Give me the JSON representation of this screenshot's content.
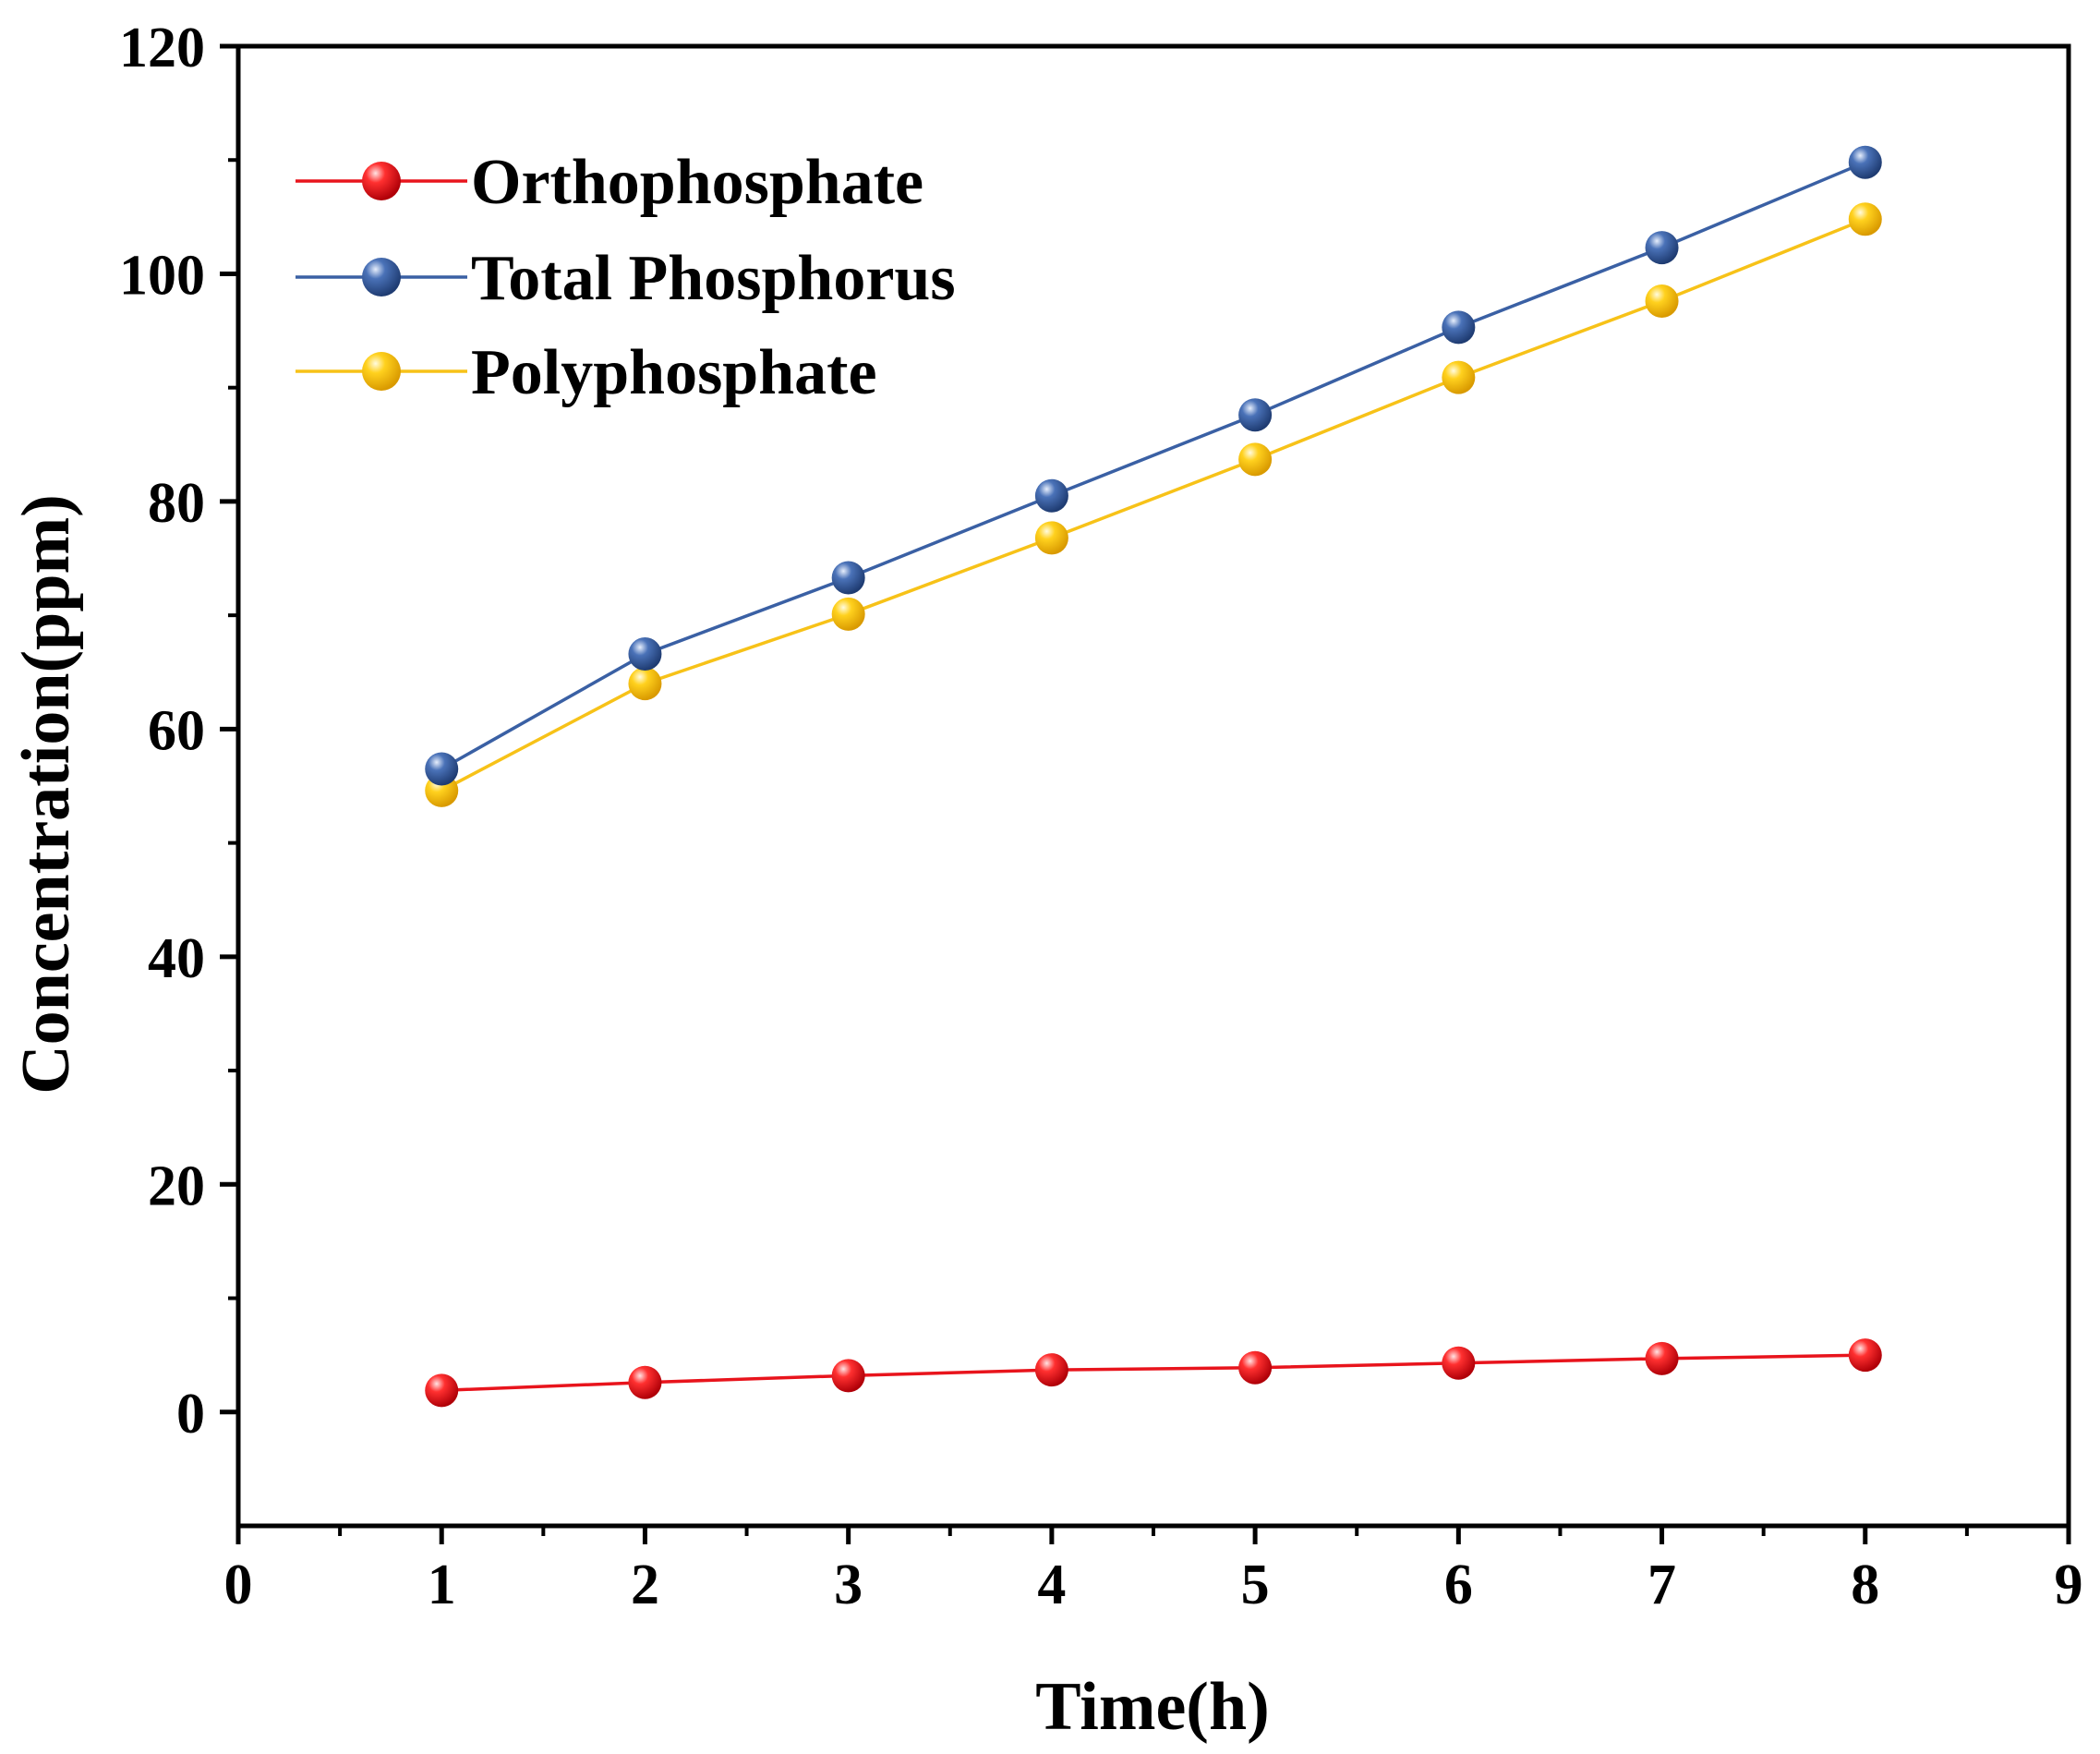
{
  "chart_data": {
    "type": "line",
    "title": "",
    "xlabel": "Time(h)",
    "ylabel": "Concentration(ppm)",
    "xlim": [
      0,
      9
    ],
    "ylim": [
      -10,
      120
    ],
    "x_ticks": [
      0,
      1,
      2,
      3,
      4,
      5,
      6,
      7,
      8,
      9
    ],
    "y_ticks": [
      0,
      20,
      40,
      60,
      80,
      100,
      120
    ],
    "grid": false,
    "legend_position": "top-left",
    "x": [
      1,
      2,
      3,
      4,
      5,
      6,
      7,
      8
    ],
    "series": [
      {
        "name": "Orthophosphate",
        "color": "#e8141c",
        "values": [
          1.9,
          2.6,
          3.2,
          3.7,
          3.9,
          4.3,
          4.7,
          5.0
        ]
      },
      {
        "name": "Total Phosphorus",
        "color": "#3a60a4",
        "values": [
          56.5,
          66.6,
          73.3,
          80.5,
          87.6,
          95.3,
          102.3,
          109.8
        ]
      },
      {
        "name": "Polyphosphate",
        "color": "#f7c218",
        "values": [
          54.6,
          64.0,
          70.1,
          76.8,
          83.7,
          90.9,
          97.6,
          104.8
        ]
      }
    ]
  }
}
